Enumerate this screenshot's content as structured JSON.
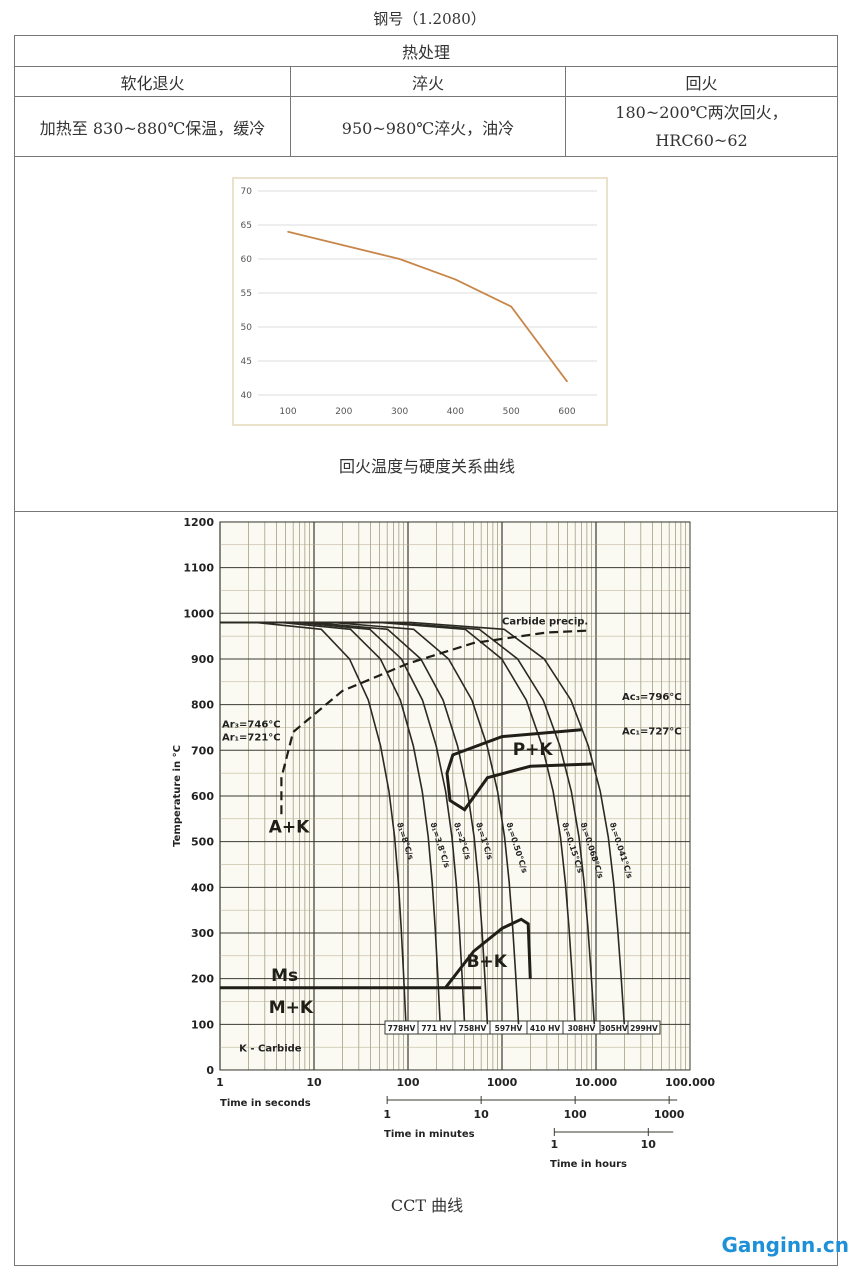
{
  "doc_title": "钢号（1.2080）",
  "table": {
    "section_header": "热处理",
    "columns": [
      "软化退火",
      "淬火",
      "回火"
    ],
    "row": [
      "加热至 830~880℃保温，缓冷",
      "950~980℃淬火，油冷",
      "180~200℃两次回火，",
      "HRC60~62"
    ]
  },
  "chart_data": [
    {
      "type": "line",
      "caption": "回火温度与硬度关系曲线",
      "x": [
        100,
        200,
        300,
        400,
        500,
        600
      ],
      "values": [
        64,
        62,
        60,
        57,
        53,
        42
      ],
      "xticks": [
        100,
        200,
        300,
        400,
        500,
        600
      ],
      "yticks": [
        40,
        45,
        50,
        55,
        60,
        65,
        70
      ],
      "ylim": [
        40,
        70
      ],
      "grid": true,
      "line_color": "#c8874a"
    },
    {
      "type": "line",
      "caption": "CCT 曲线",
      "xscale": "log",
      "xlim": [
        1,
        100000
      ],
      "ylim": [
        0,
        1200
      ],
      "ylabel": "Temperature in °C",
      "xlabel": "Time in seconds",
      "xticks": [
        "1",
        "10",
        "100",
        "1000",
        "10.000",
        "100.000"
      ],
      "yticks": [
        0,
        100,
        200,
        300,
        400,
        500,
        600,
        700,
        800,
        900,
        1000,
        1100,
        1200
      ],
      "minutes_axis": {
        "label": "Time in minutes",
        "ticks": [
          "1",
          "10",
          "100",
          "1000"
        ]
      },
      "hours_axis": {
        "label": "Time in hours",
        "ticks": [
          "1",
          "10"
        ]
      },
      "cooling_curves": [
        {
          "label": "ϑ₁=8°C/s",
          "hardness": "778HV",
          "end_time_s": 95
        },
        {
          "label": "ϑ₁=3.8°C/s",
          "hardness": "771 HV",
          "end_time_s": 220
        },
        {
          "label": "ϑ₁=2°C/s",
          "hardness": "758HV",
          "end_time_s": 400
        },
        {
          "label": "ϑ₁=1°C/s",
          "hardness": "597HV",
          "end_time_s": 700
        },
        {
          "label": "ϑ₁=0.50°C/s",
          "hardness": "410 HV",
          "end_time_s": 1500
        },
        {
          "label": "ϑ₁=0.15°C/s",
          "hardness": "308HV",
          "end_time_s": 6000
        },
        {
          "label": "ϑ₁=0.068°C/s",
          "hardness": "305HV",
          "end_time_s": 9600
        },
        {
          "label": "ϑ₁=0.041°C/s",
          "hardness": "299HV",
          "end_time_s": 20000
        }
      ],
      "regions": [
        {
          "label": "P+K",
          "upper": [
            [
              300,
              690
            ],
            [
              1000,
              730
            ],
            [
              7000,
              745
            ]
          ],
          "lower": [
            [
              260,
              650
            ],
            [
              280,
              590
            ],
            [
              400,
              570
            ],
            [
              700,
              640
            ],
            [
              2000,
              665
            ],
            [
              9000,
              670
            ]
          ]
        },
        {
          "label": "B+K",
          "points": [
            [
              250,
              180
            ],
            [
              500,
              260
            ],
            [
              1000,
              310
            ],
            [
              1600,
              330
            ],
            [
              1900,
              320
            ],
            [
              2000,
              200
            ]
          ]
        }
      ],
      "ms_line": {
        "label": "Ms",
        "temp": 180,
        "to_time_s": 600
      },
      "carbide_precip": {
        "label": "Carbide precip.",
        "points": [
          [
            4.5,
            560
          ],
          [
            4.5,
            640
          ],
          [
            6,
            740
          ],
          [
            20,
            830
          ],
          [
            100,
            890
          ],
          [
            500,
            935
          ],
          [
            3000,
            958
          ],
          [
            8000,
            962
          ]
        ]
      },
      "annotations": [
        "A+K",
        "M+K",
        "K - Carbide",
        "Ar₃=746°C",
        "Ar₁=721°C",
        "Ac₃=796°C",
        "Ac₁=727°C"
      ]
    }
  ],
  "watermark": "Ganginn.cn"
}
